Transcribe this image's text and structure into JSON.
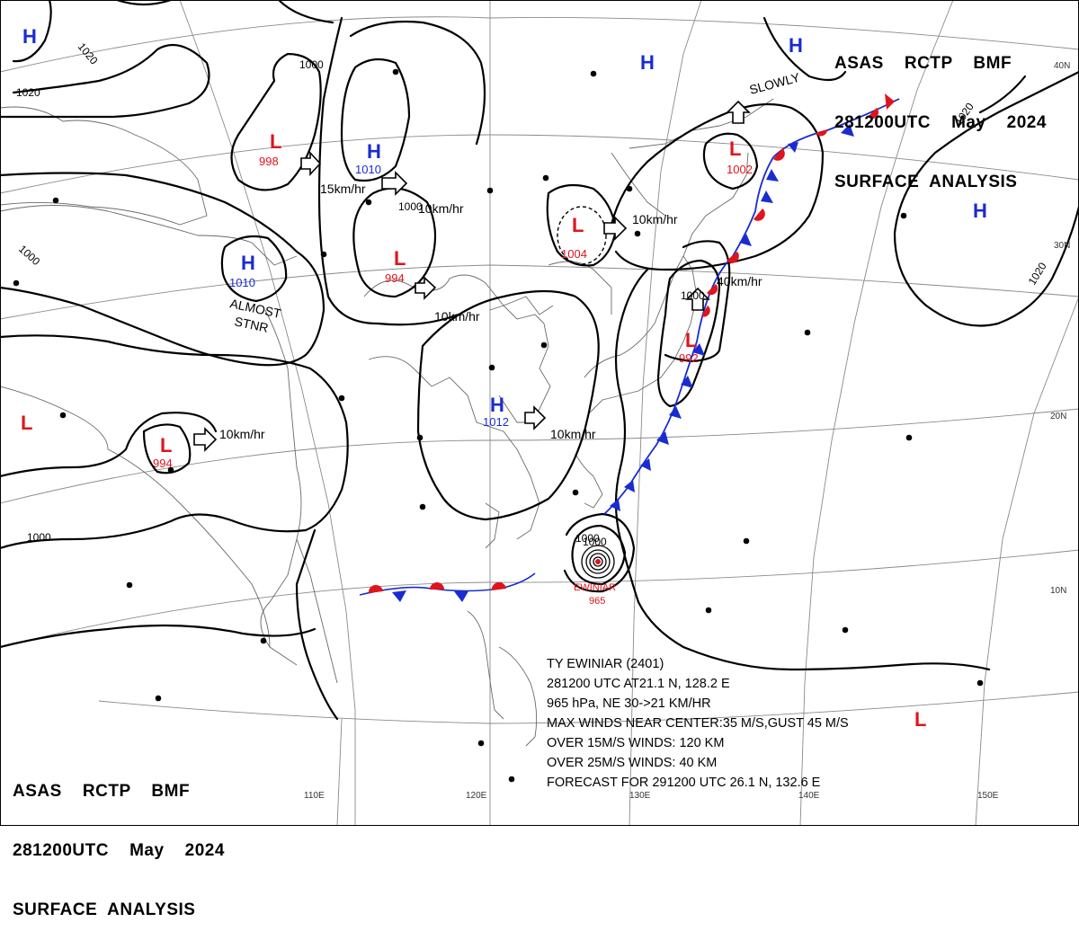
{
  "header_top": {
    "line1": "ASAS    RCTP    BMF",
    "line2": "281200UTC    May    2024",
    "line3": "SURFACE  ANALYSIS"
  },
  "header_bottom": {
    "line1": "ASAS    RCTP    BMF",
    "line2": "281200UTC    May    2024",
    "line3": "SURFACE  ANALYSIS"
  },
  "typhoon_info": {
    "name_line": "TY  EWINIAR  (2401)",
    "position_line": "281200 UTC  AT21.1 N, 128.2 E",
    "pressure_line": "965 hPa, NE  30->21 KM/HR",
    "max_winds_line": "MAX WINDS NEAR CENTER:35 M/S,GUST 45 M/S",
    "over15_line": "OVER 15M/S WINDS: 120 KM",
    "over25_line": "OVER 25M/S WINDS: 40 KM",
    "forecast_line": "FORECAST FOR 291200 UTC 26.1 N, 132.6 E"
  },
  "pressure_centers": [
    {
      "type": "H",
      "value": ""
    },
    {
      "type": "L",
      "value": "998"
    },
    {
      "type": "H",
      "value": "1010"
    },
    {
      "type": "H",
      "value": "1010"
    },
    {
      "type": "L",
      "value": "994"
    },
    {
      "type": "L",
      "value": "1004"
    },
    {
      "type": "L",
      "value": "1002"
    },
    {
      "type": "H",
      "value": ""
    },
    {
      "type": "H",
      "value": ""
    },
    {
      "type": "H",
      "value": ""
    },
    {
      "type": "H",
      "value": "1012"
    },
    {
      "type": "L",
      "value": "992"
    },
    {
      "type": "L",
      "value": ""
    },
    {
      "type": "L",
      "value": "994"
    },
    {
      "type": "L",
      "value": ""
    }
  ],
  "typhoon_label": {
    "name": "EWINIAR",
    "pressure": "965"
  },
  "isobar_labels": [
    "1020",
    "1020",
    "1000",
    "1000",
    "1000",
    "1000",
    "1020",
    "1020",
    "1000",
    "1000",
    "1000"
  ],
  "motion_labels": [
    "15km/hr",
    "10km/hr",
    "10km/hr",
    "10km/hr",
    "10km/hr",
    "40km/hr",
    "10km/hr",
    "SLOWLY",
    "ALMOST",
    "STNR"
  ],
  "lat_labels": [
    "40N",
    "30N",
    "20N",
    "10N"
  ],
  "lon_labels": [
    "110E",
    "120E",
    "130E",
    "140E",
    "150E"
  ],
  "colors": {
    "high": "#1a2ccf",
    "low": "#e0141c",
    "front_cold": "#1a2ccf",
    "front_warm": "#e0141c",
    "line": "#000000",
    "grid": "#8a8a8a"
  }
}
